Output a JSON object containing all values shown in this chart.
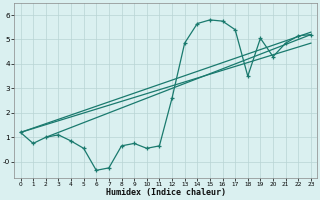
{
  "xlabel": "Humidex (Indice chaleur)",
  "bg_color": "#daf0f0",
  "line_color": "#1a7a6e",
  "grid_color": "#b8d4d4",
  "xlim": [
    -0.5,
    23.5
  ],
  "ylim": [
    -0.65,
    6.5
  ],
  "curve_x": [
    0,
    1,
    2,
    3,
    4,
    5,
    6,
    7,
    8,
    9,
    10,
    11,
    12,
    13,
    14,
    15,
    16,
    17,
    18,
    19,
    20,
    21,
    22,
    23
  ],
  "curve_y": [
    1.2,
    0.75,
    1.0,
    1.1,
    0.85,
    0.55,
    -0.35,
    -0.25,
    0.65,
    0.75,
    0.55,
    0.65,
    2.6,
    4.85,
    5.65,
    5.8,
    5.75,
    5.4,
    3.5,
    5.05,
    4.3,
    4.85,
    5.15,
    5.2
  ],
  "trend1_x": [
    0,
    23
  ],
  "trend1_y": [
    1.2,
    5.3
  ],
  "trend2_x": [
    0,
    23
  ],
  "trend2_y": [
    1.2,
    4.85
  ],
  "trend3_x": [
    2,
    23
  ],
  "trend3_y": [
    1.0,
    5.2
  ]
}
